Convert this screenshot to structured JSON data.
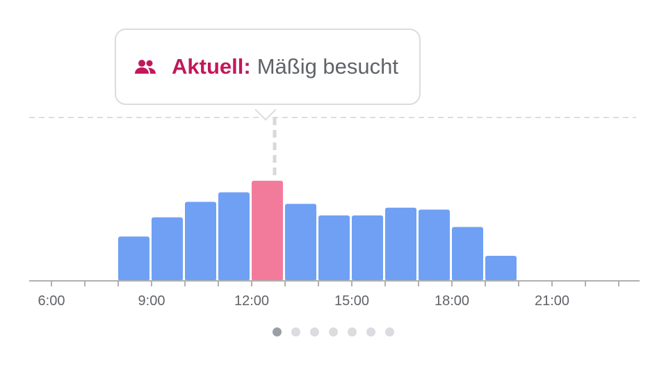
{
  "tooltip": {
    "icon": "people-icon",
    "label": "Aktuell:",
    "value": "Mäßig besucht",
    "label_color": "#c2185b"
  },
  "chart_data": {
    "type": "bar",
    "x_unit": "hour",
    "tick_labels": [
      "6:00",
      "9:00",
      "12:00",
      "15:00",
      "18:00",
      "21:00"
    ],
    "categories": [
      "8:00",
      "9:00",
      "10:00",
      "11:00",
      "12:00",
      "13:00",
      "14:00",
      "15:00",
      "16:00",
      "17:00",
      "18:00",
      "19:00"
    ],
    "values": [
      23,
      33,
      41,
      46,
      52,
      40,
      34,
      34,
      38,
      37,
      28,
      13
    ],
    "current_hour": "12:00",
    "ylim": [
      0,
      84
    ],
    "colors": {
      "bar": "#6fa0f4",
      "current": "#f27b9c",
      "axis": "#b0b0b0",
      "grid": "#dddddd"
    },
    "grid": true
  },
  "pagination": {
    "count": 7,
    "active": 0
  }
}
